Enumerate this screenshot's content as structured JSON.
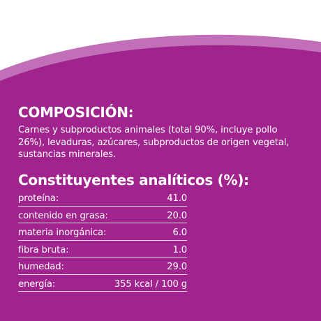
{
  "colors": {
    "background": "#ffffff",
    "panel": "#a0238e",
    "accent_stripe": "#c06fb8",
    "text": "#ffffff"
  },
  "composition": {
    "title": "COMPOSICIÓN:",
    "text": "Carnes y subproductos animales (total 90%, incluye pollo 26%), levaduras, azúcares, subproductos de origen vegetal, sustancias minerales."
  },
  "analytics": {
    "title": "Constituyentes analíticos (%):",
    "rows": [
      {
        "label": "proteína:",
        "value": "41.0"
      },
      {
        "label": "contenido en grasa:",
        "value": "20.0"
      },
      {
        "label": "materia inorgánica:",
        "value": "6.0"
      },
      {
        "label": "fibra bruta:",
        "value": "1.0"
      },
      {
        "label": "humedad:",
        "value": "29.0"
      },
      {
        "label": "energía:",
        "value": "355 kcal / 100 g"
      }
    ]
  }
}
